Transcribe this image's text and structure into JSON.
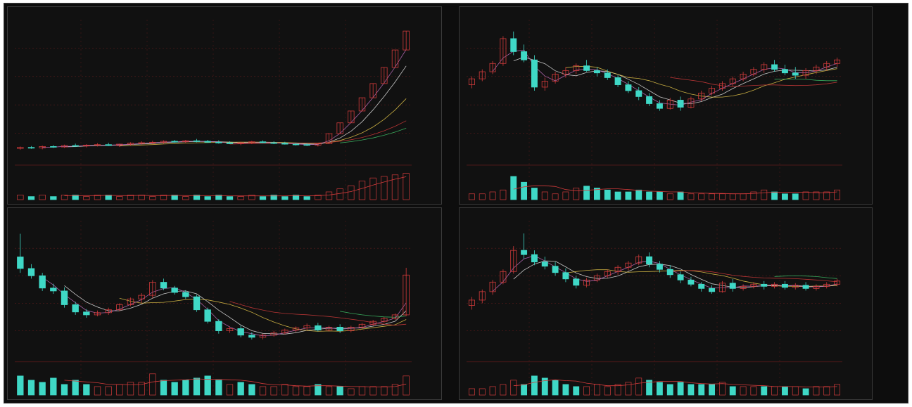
{
  "colors": {
    "background": "#111111",
    "up": "#d33b3b",
    "down": "#3fd8c6",
    "ma1": "#e8e8e8",
    "ma2": "#e6c84a",
    "ma3": "#d33b3b",
    "ma4": "#3fc46a",
    "ma5": "#c070c0",
    "grid": "#5a1a1a",
    "volume_ma": "#d33b3b"
  },
  "chart_data": [
    {
      "type": "candlestick",
      "title": "",
      "panel": "top-left",
      "candles": [
        {
          "o": 19.8,
          "h": 20.2,
          "l": 19.5,
          "c": 20.0
        },
        {
          "o": 20.0,
          "h": 20.3,
          "l": 19.7,
          "c": 19.9
        },
        {
          "o": 19.9,
          "h": 20.4,
          "l": 19.6,
          "c": 20.2
        },
        {
          "o": 20.2,
          "h": 20.5,
          "l": 19.9,
          "c": 20.1
        },
        {
          "o": 20.1,
          "h": 20.6,
          "l": 19.9,
          "c": 20.4
        },
        {
          "o": 20.4,
          "h": 20.8,
          "l": 20.1,
          "c": 20.3
        },
        {
          "o": 20.3,
          "h": 20.7,
          "l": 20.0,
          "c": 20.5
        },
        {
          "o": 20.5,
          "h": 20.9,
          "l": 20.2,
          "c": 20.6
        },
        {
          "o": 20.6,
          "h": 21.0,
          "l": 20.3,
          "c": 20.4
        },
        {
          "o": 20.4,
          "h": 20.8,
          "l": 20.1,
          "c": 20.7
        },
        {
          "o": 20.7,
          "h": 21.1,
          "l": 20.4,
          "c": 20.9
        },
        {
          "o": 20.9,
          "h": 21.3,
          "l": 20.6,
          "c": 21.0
        },
        {
          "o": 21.0,
          "h": 21.4,
          "l": 20.7,
          "c": 21.1
        },
        {
          "o": 21.1,
          "h": 21.5,
          "l": 20.8,
          "c": 21.3
        },
        {
          "o": 21.3,
          "h": 21.6,
          "l": 21.0,
          "c": 21.2
        },
        {
          "o": 21.2,
          "h": 21.6,
          "l": 20.9,
          "c": 21.4
        },
        {
          "o": 21.4,
          "h": 21.8,
          "l": 21.1,
          "c": 21.3
        },
        {
          "o": 21.3,
          "h": 21.6,
          "l": 21.0,
          "c": 21.1
        },
        {
          "o": 21.1,
          "h": 21.5,
          "l": 20.8,
          "c": 21.0
        },
        {
          "o": 21.0,
          "h": 21.3,
          "l": 20.7,
          "c": 20.8
        },
        {
          "o": 20.8,
          "h": 21.2,
          "l": 20.5,
          "c": 21.0
        },
        {
          "o": 21.0,
          "h": 21.4,
          "l": 20.7,
          "c": 21.2
        },
        {
          "o": 21.2,
          "h": 21.5,
          "l": 20.9,
          "c": 21.0
        },
        {
          "o": 21.0,
          "h": 21.3,
          "l": 20.7,
          "c": 20.9
        },
        {
          "o": 20.9,
          "h": 21.2,
          "l": 20.6,
          "c": 20.7
        },
        {
          "o": 20.7,
          "h": 21.0,
          "l": 20.4,
          "c": 20.6
        },
        {
          "o": 20.6,
          "h": 20.9,
          "l": 20.3,
          "c": 20.5
        },
        {
          "o": 20.5,
          "h": 20.9,
          "l": 20.2,
          "c": 20.8
        },
        {
          "o": 20.8,
          "h": 22.9,
          "l": 20.7,
          "c": 22.9
        },
        {
          "o": 22.9,
          "h": 25.2,
          "l": 22.9,
          "c": 25.2
        },
        {
          "o": 25.2,
          "h": 27.7,
          "l": 25.2,
          "c": 27.7
        },
        {
          "o": 27.7,
          "h": 30.5,
          "l": 27.7,
          "c": 30.5
        },
        {
          "o": 30.5,
          "h": 33.5,
          "l": 30.5,
          "c": 33.5
        },
        {
          "o": 33.5,
          "h": 36.9,
          "l": 33.5,
          "c": 36.9
        },
        {
          "o": 36.9,
          "h": 40.6,
          "l": 36.9,
          "c": 40.6
        },
        {
          "o": 40.6,
          "h": 44.6,
          "l": 40.6,
          "c": 44.6
        }
      ],
      "volume": [
        3,
        2,
        3,
        2,
        3,
        3,
        2,
        3,
        3,
        2,
        3,
        3,
        2,
        3,
        3,
        2,
        3,
        2,
        3,
        2,
        2,
        3,
        2,
        3,
        2,
        3,
        2,
        3,
        5,
        7,
        9,
        12,
        14,
        15,
        16,
        17
      ],
      "ylim": [
        17,
        47
      ],
      "volume_max": 20
    },
    {
      "type": "candlestick",
      "title": "",
      "panel": "top-right",
      "candles": [
        {
          "o": 14.5,
          "h": 15.2,
          "l": 14.2,
          "c": 15.0
        },
        {
          "o": 15.0,
          "h": 15.8,
          "l": 14.8,
          "c": 15.6
        },
        {
          "o": 15.6,
          "h": 16.5,
          "l": 15.4,
          "c": 16.3
        },
        {
          "o": 16.3,
          "h": 18.6,
          "l": 16.1,
          "c": 18.4
        },
        {
          "o": 18.4,
          "h": 19.0,
          "l": 17.0,
          "c": 17.3
        },
        {
          "o": 17.3,
          "h": 17.9,
          "l": 16.4,
          "c": 16.6
        },
        {
          "o": 16.6,
          "h": 17.0,
          "l": 14.0,
          "c": 14.3
        },
        {
          "o": 14.3,
          "h": 15.1,
          "l": 14.0,
          "c": 14.8
        },
        {
          "o": 14.8,
          "h": 15.6,
          "l": 14.6,
          "c": 15.4
        },
        {
          "o": 15.4,
          "h": 16.0,
          "l": 15.1,
          "c": 15.7
        },
        {
          "o": 15.7,
          "h": 16.3,
          "l": 15.4,
          "c": 16.1
        },
        {
          "o": 16.1,
          "h": 16.6,
          "l": 15.6,
          "c": 15.7
        },
        {
          "o": 15.7,
          "h": 16.0,
          "l": 15.2,
          "c": 15.5
        },
        {
          "o": 15.5,
          "h": 15.8,
          "l": 14.9,
          "c": 15.1
        },
        {
          "o": 15.1,
          "h": 15.3,
          "l": 14.3,
          "c": 14.5
        },
        {
          "o": 14.5,
          "h": 14.8,
          "l": 13.8,
          "c": 14.0
        },
        {
          "o": 14.0,
          "h": 14.3,
          "l": 13.2,
          "c": 13.5
        },
        {
          "o": 13.5,
          "h": 13.8,
          "l": 12.7,
          "c": 12.9
        },
        {
          "o": 12.9,
          "h": 13.2,
          "l": 12.3,
          "c": 12.5
        },
        {
          "o": 12.5,
          "h": 13.4,
          "l": 12.4,
          "c": 13.2
        },
        {
          "o": 13.2,
          "h": 13.5,
          "l": 12.3,
          "c": 12.6
        },
        {
          "o": 12.6,
          "h": 13.5,
          "l": 12.5,
          "c": 13.3
        },
        {
          "o": 13.3,
          "h": 14.0,
          "l": 13.1,
          "c": 13.8
        },
        {
          "o": 13.8,
          "h": 14.4,
          "l": 13.6,
          "c": 14.2
        },
        {
          "o": 14.2,
          "h": 14.8,
          "l": 14.0,
          "c": 14.6
        },
        {
          "o": 14.6,
          "h": 15.2,
          "l": 14.4,
          "c": 15.0
        },
        {
          "o": 15.0,
          "h": 15.6,
          "l": 14.8,
          "c": 15.4
        },
        {
          "o": 15.4,
          "h": 16.0,
          "l": 15.2,
          "c": 15.8
        },
        {
          "o": 15.8,
          "h": 16.4,
          "l": 15.5,
          "c": 16.2
        },
        {
          "o": 16.2,
          "h": 16.6,
          "l": 15.6,
          "c": 15.8
        },
        {
          "o": 15.8,
          "h": 16.2,
          "l": 15.3,
          "c": 15.5
        },
        {
          "o": 15.5,
          "h": 16.0,
          "l": 15.0,
          "c": 15.3
        },
        {
          "o": 15.3,
          "h": 15.9,
          "l": 15.0,
          "c": 15.7
        },
        {
          "o": 15.7,
          "h": 16.2,
          "l": 15.4,
          "c": 16.0
        },
        {
          "o": 16.0,
          "h": 16.5,
          "l": 15.7,
          "c": 16.3
        },
        {
          "o": 16.3,
          "h": 16.8,
          "l": 16.0,
          "c": 16.6
        }
      ],
      "volume": [
        3,
        3,
        4,
        5,
        12,
        9,
        6,
        4,
        3,
        4,
        6,
        7,
        6,
        5,
        4,
        4,
        5,
        4,
        4,
        3,
        4,
        3,
        3,
        3,
        3,
        3,
        3,
        4,
        5,
        4,
        3,
        3,
        4,
        4,
        4,
        5
      ],
      "ylim": [
        8,
        20
      ],
      "volume_max": 16
    },
    {
      "type": "candlestick",
      "title": "",
      "panel": "bottom-left",
      "candles": [
        {
          "o": 26.0,
          "h": 29.2,
          "l": 23.8,
          "c": 24.4
        },
        {
          "o": 24.4,
          "h": 25.0,
          "l": 23.0,
          "c": 23.4
        },
        {
          "o": 23.4,
          "h": 23.8,
          "l": 21.3,
          "c": 21.7
        },
        {
          "o": 21.7,
          "h": 22.3,
          "l": 20.9,
          "c": 21.3
        },
        {
          "o": 21.3,
          "h": 21.8,
          "l": 19.0,
          "c": 19.4
        },
        {
          "o": 19.4,
          "h": 19.8,
          "l": 18.0,
          "c": 18.4
        },
        {
          "o": 18.4,
          "h": 18.8,
          "l": 17.6,
          "c": 18.0
        },
        {
          "o": 18.0,
          "h": 18.6,
          "l": 17.8,
          "c": 18.3
        },
        {
          "o": 18.3,
          "h": 19.0,
          "l": 18.0,
          "c": 18.7
        },
        {
          "o": 18.7,
          "h": 19.6,
          "l": 18.5,
          "c": 19.4
        },
        {
          "o": 19.4,
          "h": 20.4,
          "l": 19.2,
          "c": 20.2
        },
        {
          "o": 20.2,
          "h": 21.0,
          "l": 19.6,
          "c": 20.7
        },
        {
          "o": 20.7,
          "h": 22.8,
          "l": 20.3,
          "c": 22.5
        },
        {
          "o": 22.5,
          "h": 23.0,
          "l": 21.4,
          "c": 21.7
        },
        {
          "o": 21.7,
          "h": 22.0,
          "l": 20.8,
          "c": 21.1
        },
        {
          "o": 21.1,
          "h": 21.4,
          "l": 20.2,
          "c": 20.5
        },
        {
          "o": 20.5,
          "h": 20.8,
          "l": 18.4,
          "c": 18.7
        },
        {
          "o": 18.7,
          "h": 19.0,
          "l": 16.8,
          "c": 17.1
        },
        {
          "o": 17.1,
          "h": 17.4,
          "l": 15.4,
          "c": 15.8
        },
        {
          "o": 15.8,
          "h": 16.4,
          "l": 15.5,
          "c": 16.1
        },
        {
          "o": 16.1,
          "h": 16.5,
          "l": 14.9,
          "c": 15.2
        },
        {
          "o": 15.2,
          "h": 15.6,
          "l": 14.6,
          "c": 14.9
        },
        {
          "o": 14.9,
          "h": 15.4,
          "l": 14.6,
          "c": 15.2
        },
        {
          "o": 15.2,
          "h": 15.8,
          "l": 15.0,
          "c": 15.5
        },
        {
          "o": 15.5,
          "h": 16.1,
          "l": 15.3,
          "c": 15.9
        },
        {
          "o": 15.9,
          "h": 16.4,
          "l": 15.6,
          "c": 16.2
        },
        {
          "o": 16.2,
          "h": 16.8,
          "l": 15.9,
          "c": 16.5
        },
        {
          "o": 16.5,
          "h": 16.9,
          "l": 15.7,
          "c": 15.9
        },
        {
          "o": 15.9,
          "h": 16.5,
          "l": 15.7,
          "c": 16.3
        },
        {
          "o": 16.3,
          "h": 16.7,
          "l": 15.5,
          "c": 15.8
        },
        {
          "o": 15.8,
          "h": 16.5,
          "l": 15.6,
          "c": 16.3
        },
        {
          "o": 16.3,
          "h": 16.9,
          "l": 16.1,
          "c": 16.7
        },
        {
          "o": 16.7,
          "h": 17.3,
          "l": 16.5,
          "c": 17.1
        },
        {
          "o": 17.1,
          "h": 17.7,
          "l": 16.9,
          "c": 17.5
        },
        {
          "o": 17.5,
          "h": 18.2,
          "l": 17.3,
          "c": 18.0
        },
        {
          "o": 18.0,
          "h": 24.5,
          "l": 17.8,
          "c": 23.5
        }
      ],
      "volume": [
        9,
        7,
        6,
        8,
        5,
        7,
        5,
        4,
        4,
        5,
        6,
        6,
        10,
        7,
        6,
        7,
        8,
        9,
        7,
        5,
        6,
        5,
        4,
        4,
        5,
        4,
        4,
        5,
        4,
        4,
        3,
        4,
        4,
        4,
        5,
        9
      ],
      "ylim": [
        12,
        31
      ],
      "volume_max": 14
    },
    {
      "type": "candlestick",
      "title": "",
      "panel": "bottom-right",
      "candles": [
        {
          "o": 16.0,
          "h": 16.8,
          "l": 15.6,
          "c": 16.5
        },
        {
          "o": 16.5,
          "h": 17.5,
          "l": 16.2,
          "c": 17.3
        },
        {
          "o": 17.3,
          "h": 18.4,
          "l": 17.0,
          "c": 18.2
        },
        {
          "o": 18.2,
          "h": 19.4,
          "l": 18.0,
          "c": 19.2
        },
        {
          "o": 19.2,
          "h": 21.6,
          "l": 19.0,
          "c": 21.2
        },
        {
          "o": 21.2,
          "h": 22.8,
          "l": 20.4,
          "c": 20.8
        },
        {
          "o": 20.8,
          "h": 21.2,
          "l": 19.8,
          "c": 20.1
        },
        {
          "o": 20.1,
          "h": 20.6,
          "l": 19.4,
          "c": 19.7
        },
        {
          "o": 19.7,
          "h": 20.1,
          "l": 18.8,
          "c": 19.1
        },
        {
          "o": 19.1,
          "h": 19.5,
          "l": 18.2,
          "c": 18.5
        },
        {
          "o": 18.5,
          "h": 18.8,
          "l": 17.6,
          "c": 17.9
        },
        {
          "o": 17.9,
          "h": 18.6,
          "l": 17.7,
          "c": 18.4
        },
        {
          "o": 18.4,
          "h": 19.0,
          "l": 18.2,
          "c": 18.8
        },
        {
          "o": 18.8,
          "h": 19.4,
          "l": 18.6,
          "c": 19.2
        },
        {
          "o": 19.2,
          "h": 19.8,
          "l": 18.9,
          "c": 19.6
        },
        {
          "o": 19.6,
          "h": 20.2,
          "l": 19.3,
          "c": 20.0
        },
        {
          "o": 20.0,
          "h": 20.8,
          "l": 19.8,
          "c": 20.6
        },
        {
          "o": 20.6,
          "h": 21.0,
          "l": 19.6,
          "c": 19.9
        },
        {
          "o": 19.9,
          "h": 20.2,
          "l": 19.1,
          "c": 19.4
        },
        {
          "o": 19.4,
          "h": 19.8,
          "l": 18.6,
          "c": 18.9
        },
        {
          "o": 18.9,
          "h": 19.2,
          "l": 18.1,
          "c": 18.4
        },
        {
          "o": 18.4,
          "h": 18.7,
          "l": 17.8,
          "c": 18.0
        },
        {
          "o": 18.0,
          "h": 18.2,
          "l": 17.3,
          "c": 17.6
        },
        {
          "o": 17.6,
          "h": 17.9,
          "l": 17.1,
          "c": 17.3
        },
        {
          "o": 17.3,
          "h": 18.3,
          "l": 17.2,
          "c": 18.1
        },
        {
          "o": 18.1,
          "h": 18.5,
          "l": 17.3,
          "c": 17.6
        },
        {
          "o": 17.6,
          "h": 18.0,
          "l": 17.4,
          "c": 17.8
        },
        {
          "o": 17.8,
          "h": 18.2,
          "l": 17.6,
          "c": 18.0
        },
        {
          "o": 18.0,
          "h": 18.3,
          "l": 17.5,
          "c": 17.8
        },
        {
          "o": 17.8,
          "h": 18.2,
          "l": 17.6,
          "c": 18.0
        },
        {
          "o": 18.0,
          "h": 18.3,
          "l": 17.5,
          "c": 17.7
        },
        {
          "o": 17.7,
          "h": 18.1,
          "l": 17.5,
          "c": 17.9
        },
        {
          "o": 17.9,
          "h": 18.2,
          "l": 17.4,
          "c": 17.6
        },
        {
          "o": 17.6,
          "h": 18.0,
          "l": 17.4,
          "c": 17.8
        },
        {
          "o": 17.8,
          "h": 18.2,
          "l": 17.6,
          "c": 18.0
        },
        {
          "o": 18.0,
          "h": 18.5,
          "l": 17.8,
          "c": 18.3
        }
      ],
      "volume": [
        3,
        3,
        4,
        5,
        7,
        5,
        9,
        8,
        7,
        5,
        4,
        4,
        5,
        4,
        5,
        6,
        8,
        7,
        6,
        5,
        6,
        5,
        5,
        5,
        6,
        4,
        4,
        4,
        4,
        4,
        4,
        4,
        3,
        4,
        4,
        5
      ],
      "ylim": [
        11,
        24
      ],
      "volume_max": 14
    }
  ]
}
